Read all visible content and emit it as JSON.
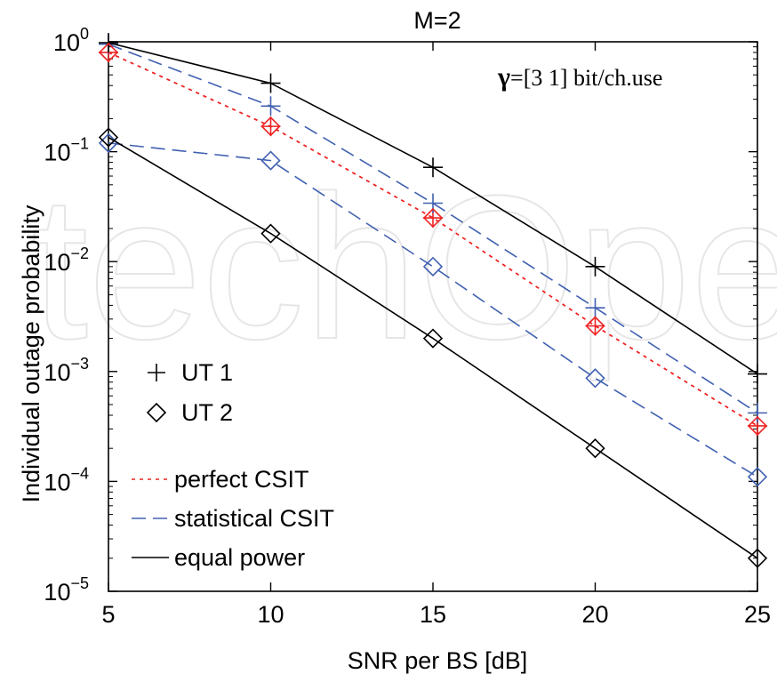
{
  "chart_data": {
    "type": "line",
    "title": "M=2",
    "xlabel": "SNR per BS [dB]",
    "ylabel": "Individual outage probability",
    "x": [
      5,
      10,
      15,
      20,
      25
    ],
    "xlim": [
      5,
      25
    ],
    "ylim": [
      1e-05,
      1
    ],
    "yscale": "log",
    "x_ticks": [
      "5",
      "10",
      "15",
      "20",
      "25"
    ],
    "y_ticks": [
      {
        "base": "10",
        "exp": "0"
      },
      {
        "base": "10",
        "exp": "−1"
      },
      {
        "base": "10",
        "exp": "−2"
      },
      {
        "base": "10",
        "exp": "−3"
      },
      {
        "base": "10",
        "exp": "−4"
      },
      {
        "base": "10",
        "exp": "−5"
      }
    ],
    "annotation": {
      "gamma": "γ",
      "text": "=[3 1] bit/ch.use"
    },
    "watermark": "techOpe",
    "legend": {
      "markers": [
        {
          "symbol": "plus",
          "label": "UT 1"
        },
        {
          "symbol": "diamond",
          "label": "UT 2"
        }
      ],
      "lines": [
        {
          "style": "dotted",
          "color": "#ee2222",
          "label": "perfect CSIT"
        },
        {
          "style": "dashed",
          "color": "#4060b0",
          "label": "statistical CSIT"
        },
        {
          "style": "solid",
          "color": "#000000",
          "label": "equal power"
        }
      ]
    },
    "series": [
      {
        "user": "UT 1",
        "method": "perfect CSIT",
        "marker": "plus",
        "color": "#ee2222",
        "style": "dotted",
        "values": [
          0.8,
          0.17,
          0.025,
          0.0026,
          0.00032
        ]
      },
      {
        "user": "UT 1",
        "method": "statistical CSIT",
        "marker": "plus",
        "color": "#4060b0",
        "style": "dashed",
        "values": [
          0.95,
          0.26,
          0.034,
          0.0038,
          0.00042
        ]
      },
      {
        "user": "UT 1",
        "method": "equal power",
        "marker": "plus",
        "color": "#000000",
        "style": "solid",
        "values": [
          0.98,
          0.42,
          0.072,
          0.009,
          0.00095
        ]
      },
      {
        "user": "UT 2",
        "method": "perfect CSIT",
        "marker": "diamond",
        "color": "#ee2222",
        "style": "dotted",
        "values": [
          0.8,
          0.17,
          0.025,
          0.0026,
          0.00032
        ]
      },
      {
        "user": "UT 2",
        "method": "statistical CSIT",
        "marker": "diamond",
        "color": "#4060b0",
        "style": "dashed",
        "values": [
          0.12,
          0.083,
          0.009,
          0.00087,
          0.00011
        ]
      },
      {
        "user": "UT 2",
        "method": "equal power",
        "marker": "diamond",
        "color": "#000000",
        "style": "solid",
        "values": [
          0.135,
          0.018,
          0.002,
          0.0002,
          2e-05
        ]
      }
    ]
  }
}
